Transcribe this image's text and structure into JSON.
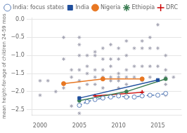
{
  "chart_data": {
    "type": "line",
    "ylabel": "mean height-for-age of children 24-59 mos",
    "xlim": [
      1999,
      2018
    ],
    "ylim": [
      -2.65,
      0.05
    ],
    "xticks": [
      2000,
      2005,
      2010,
      2015
    ],
    "yticks": [
      {
        "value": 0,
        "label": "0.0"
      },
      {
        "value": -0.5,
        "label": "−0.5"
      },
      {
        "value": -1.0,
        "label": "−1.0"
      },
      {
        "value": -1.5,
        "label": "−1.5"
      },
      {
        "value": -2.0,
        "label": "−2.0"
      },
      {
        "value": -2.5,
        "label": "−2.5"
      }
    ],
    "grid": "y",
    "legend": "upper right",
    "series": [
      {
        "type": "scatter",
        "color": "#9999aa",
        "marker": "star",
        "x": [
          2000,
          2000,
          2001,
          2002,
          2003,
          2003,
          2003,
          2004,
          2004,
          2004,
          2005,
          2005,
          2005,
          2005,
          2005,
          2005,
          2005,
          2006,
          2006,
          2006,
          2006,
          2007,
          2007,
          2007,
          2007,
          2007,
          2008,
          2008,
          2008,
          2008,
          2008,
          2009,
          2009,
          2009,
          2009,
          2009,
          2010,
          2010,
          2010,
          2010,
          2010,
          2010,
          2011,
          2011,
          2011,
          2011,
          2011,
          2012,
          2012,
          2012,
          2013,
          2013,
          2013,
          2013,
          2014,
          2014,
          2014,
          2014,
          2015,
          2015,
          2015,
          2015,
          2016,
          2016,
          2016,
          2016,
          2016,
          2017
        ],
        "values": [
          -1.7,
          -2.1,
          -1.7,
          -2.0,
          -0.5,
          -1.1,
          -1.9,
          -1.4,
          -1.6,
          -2.4,
          -0.5,
          -0.7,
          -1.0,
          -1.4,
          -1.7,
          -1.9,
          -2.6,
          -1.0,
          -1.3,
          -1.5,
          -1.8,
          -0.9,
          -1.0,
          -1.4,
          -1.6,
          -1.8,
          -0.8,
          -1.1,
          -1.4,
          -1.6,
          -1.9,
          -0.7,
          -1.1,
          -1.3,
          -1.6,
          -1.7,
          -0.8,
          -1.1,
          -1.5,
          -1.6,
          -1.7,
          -1.9,
          -0.6,
          -1.0,
          -1.4,
          -1.6,
          -1.8,
          -0.8,
          -1.3,
          -1.6,
          -0.6,
          -0.8,
          -1.3,
          -1.7,
          -0.5,
          -0.8,
          -1.3,
          -1.6,
          -0.15,
          -0.8,
          -1.3,
          -1.7,
          -1.0,
          -1.4,
          -1.6,
          -1.8,
          -2.1,
          -1.6
        ]
      },
      {
        "name": "India: focus states",
        "color": "#5b7fba",
        "line_style": "dashed",
        "marker": "open circle",
        "x": [
          2005,
          2006,
          2007,
          2008,
          2009,
          2010,
          2011,
          2012,
          2013,
          2014,
          2015,
          2016
        ],
        "values": [
          -2.38,
          -2.28,
          -2.22,
          -2.18,
          -2.15,
          -2.12,
          -2.15,
          -2.15,
          -2.12,
          -2.1,
          -2.1,
          -2.05
        ]
      },
      {
        "name": "India",
        "color": "#1f4e9c",
        "line_style": "solid",
        "marker": "square",
        "x": [
          2005,
          2015
        ],
        "values": [
          -2.18,
          -1.68
        ]
      },
      {
        "name": "Nigeria",
        "color": "#e87722",
        "line_style": "solid",
        "marker": "circle",
        "x": [
          2003,
          2008,
          2013
        ],
        "values": [
          -1.78,
          -1.65,
          -1.65
        ]
      },
      {
        "name": "Ethiopia",
        "color": "#3a7d52",
        "line_style": "solid",
        "marker": "star",
        "x": [
          2005,
          2011,
          2016
        ],
        "values": [
          -2.25,
          -2.0,
          -1.65
        ]
      },
      {
        "name": "DRC",
        "color": "#cc0000",
        "line_style": "solid",
        "marker": "plus",
        "x": [
          2007,
          2013
        ],
        "values": [
          -2.12,
          -2.02
        ]
      }
    ]
  }
}
